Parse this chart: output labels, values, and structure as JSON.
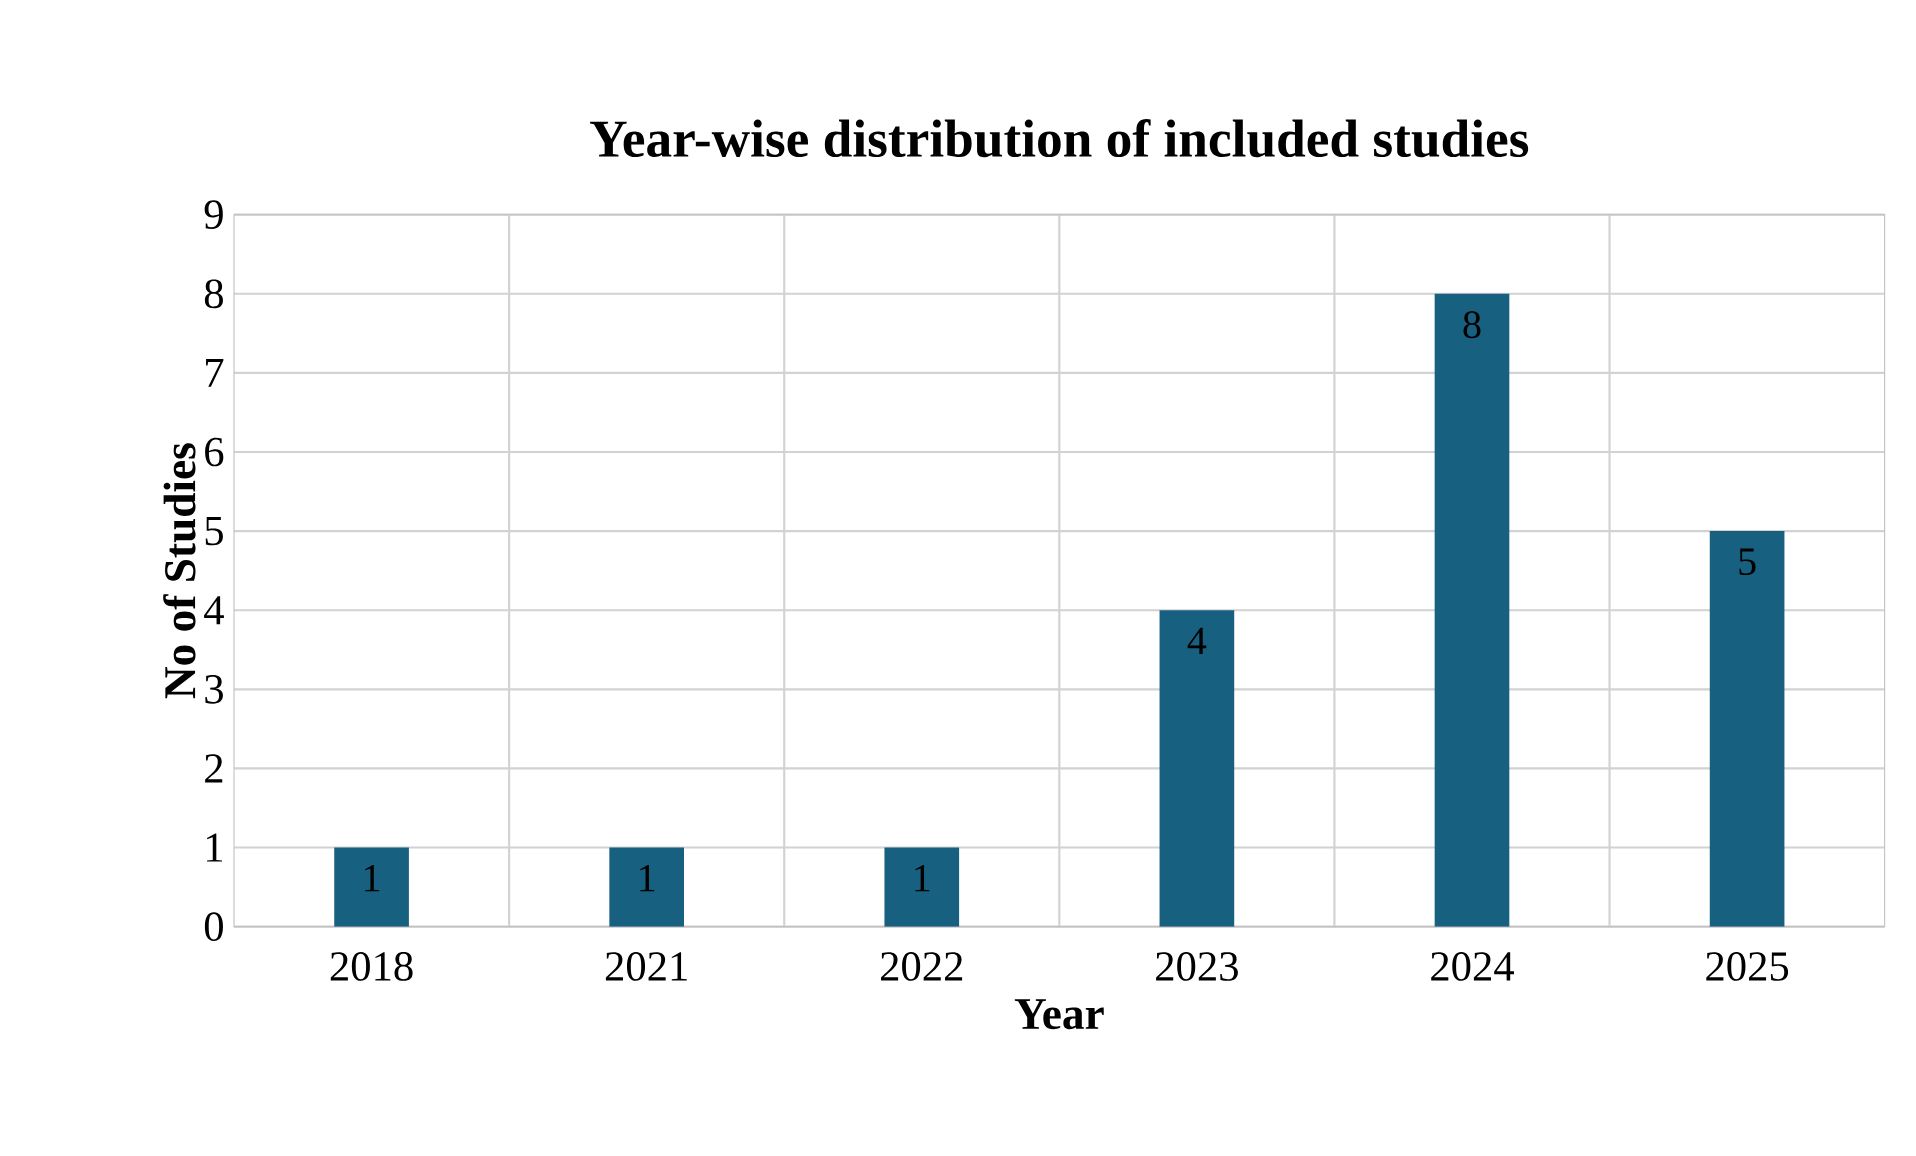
{
  "chart_data": {
    "type": "bar",
    "title": "Year-wise distribution of included studies",
    "xlabel": "Year",
    "ylabel": "No of Studies",
    "categories": [
      "2018",
      "2021",
      "2022",
      "2023",
      "2024",
      "2025"
    ],
    "values": [
      1,
      1,
      1,
      4,
      8,
      5
    ],
    "color": "#17607f",
    "ylim": [
      0,
      9
    ],
    "yticks": [
      0,
      1,
      2,
      3,
      4,
      5,
      6,
      7,
      8,
      9
    ],
    "grid": true,
    "data_labels": true
  }
}
